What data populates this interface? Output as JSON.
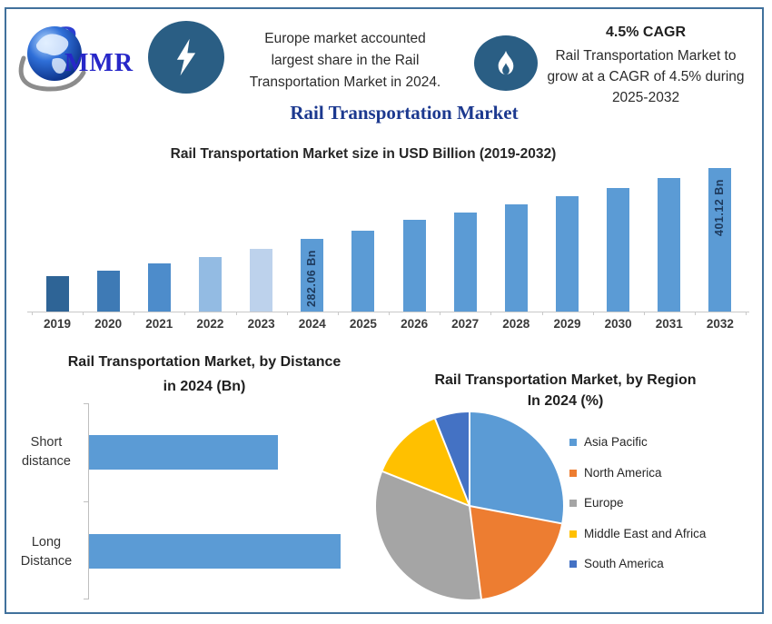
{
  "header": {
    "logo": {
      "text": "MMR",
      "swoosh_glyph": "2"
    },
    "left_callout": {
      "icon": "lightning-icon",
      "lines": [
        "Europe market accounted",
        "largest share in the Rail",
        "Transportation Market in 2024."
      ]
    },
    "right_callout": {
      "icon": "flame-icon",
      "heading": "4.5% CAGR",
      "lines": [
        "Rail Transportation Market to",
        "grow at a CAGR of 4.5% during",
        "2025-2032"
      ]
    }
  },
  "page_title": "Rail Transportation Market",
  "chart_data": [
    {
      "type": "bar",
      "title": "Rail Transportation Market size in USD Billion (2019-2032)",
      "ylabel": "USD Billion",
      "categories": [
        "2019",
        "2020",
        "2021",
        "2022",
        "2023",
        "2024",
        "2025",
        "2026",
        "2027",
        "2028",
        "2029",
        "2030",
        "2031",
        "2032"
      ],
      "values_usd_bn": [
        219,
        229,
        241,
        252,
        265,
        282.06,
        296,
        315,
        326,
        340,
        354,
        368,
        385,
        401.12
      ],
      "data_labels": [
        "",
        "",
        "",
        "",
        "",
        "282.06 Bn",
        "",
        "",
        "",
        "",
        "",
        "",
        "",
        "401.12 Bn"
      ],
      "bar_colors": [
        "#2E6496",
        "#3E7AB5",
        "#4D8CCB",
        "#93BBE3",
        "#BDD2EC",
        "#5B9BD5",
        "#5B9BD5",
        "#5B9BD5",
        "#5B9BD5",
        "#5B9BD5",
        "#5B9BD5",
        "#5B9BD5",
        "#5B9BD5",
        "#5B9BD5"
      ],
      "ylim": [
        160,
        412
      ],
      "grid": false,
      "cagr_pct": 4.5
    },
    {
      "type": "bar-horizontal",
      "title_lines": [
        "Rail Transportation Market, by Distance",
        "in 2024 (Bn)"
      ],
      "categories": [
        [
          "Short",
          "distance"
        ],
        [
          "Long",
          "Distance"
        ]
      ],
      "values_relative": [
        0.75,
        1.0
      ],
      "bar_color": "#5B9BD5",
      "grid": false
    },
    {
      "type": "pie",
      "title_lines": [
        "Rail Transportation Market, by Region",
        "In 2024 (%)"
      ],
      "labels": [
        "Asia Pacific",
        "North America",
        "Europe",
        "Middle East and Africa",
        "South America"
      ],
      "values_pct": [
        28,
        20,
        33,
        13,
        6
      ],
      "colors": [
        "#5B9BD5",
        "#ED7D31",
        "#A5A5A5",
        "#FFC000",
        "#4472C4"
      ],
      "legend_position": "right"
    }
  ]
}
